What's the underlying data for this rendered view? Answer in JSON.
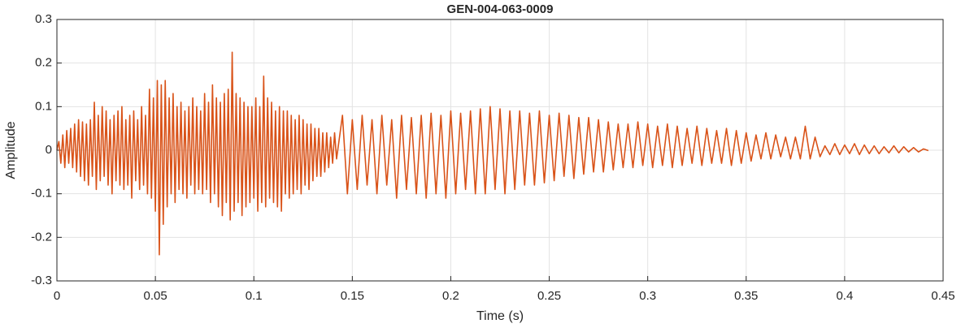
{
  "chart_data": {
    "type": "line",
    "title": "GEN-004-063-0009",
    "x_label": "Time (s)",
    "y_label": "Amplitude",
    "color": "#d95319",
    "grid": true,
    "xlim": [
      0,
      0.45
    ],
    "xticks": [
      0,
      0.05,
      0.1,
      0.15,
      0.2,
      0.25,
      0.3,
      0.35,
      0.4,
      0.45
    ],
    "ylim": [
      -0.3,
      0.3
    ],
    "yticks": [
      -0.3,
      -0.2,
      -0.1,
      0,
      0.1,
      0.2,
      0.3
    ],
    "x": [
      0,
      0.001,
      0.002,
      0.003,
      0.004,
      0.005,
      0.006,
      0.007,
      0.008,
      0.009,
      0.01,
      0.011,
      0.012,
      0.013,
      0.014,
      0.015,
      0.016,
      0.017,
      0.018,
      0.019,
      0.02,
      0.021,
      0.022,
      0.023,
      0.024,
      0.025,
      0.026,
      0.027,
      0.028,
      0.029,
      0.03,
      0.031,
      0.032,
      0.033,
      0.034,
      0.035,
      0.036,
      0.037,
      0.038,
      0.039,
      0.04,
      0.041,
      0.042,
      0.043,
      0.044,
      0.045,
      0.046,
      0.047,
      0.048,
      0.049,
      0.05,
      0.051,
      0.052,
      0.053,
      0.054,
      0.055,
      0.056,
      0.057,
      0.058,
      0.059,
      0.06,
      0.061,
      0.062,
      0.063,
      0.064,
      0.065,
      0.066,
      0.067,
      0.068,
      0.069,
      0.07,
      0.071,
      0.072,
      0.073,
      0.074,
      0.075,
      0.076,
      0.077,
      0.078,
      0.079,
      0.08,
      0.081,
      0.082,
      0.083,
      0.084,
      0.085,
      0.086,
      0.087,
      0.088,
      0.089,
      0.09,
      0.091,
      0.092,
      0.093,
      0.094,
      0.095,
      0.096,
      0.097,
      0.098,
      0.099,
      0.1,
      0.101,
      0.102,
      0.103,
      0.104,
      0.105,
      0.106,
      0.107,
      0.108,
      0.109,
      0.11,
      0.111,
      0.112,
      0.113,
      0.114,
      0.115,
      0.116,
      0.117,
      0.118,
      0.119,
      0.12,
      0.121,
      0.122,
      0.123,
      0.124,
      0.125,
      0.126,
      0.127,
      0.128,
      0.129,
      0.13,
      0.131,
      0.132,
      0.133,
      0.134,
      0.135,
      0.136,
      0.137,
      0.138,
      0.139,
      0.14,
      0.141,
      0.142,
      0.145,
      0.1475,
      0.15,
      0.1525,
      0.155,
      0.1575,
      0.16,
      0.1625,
      0.165,
      0.1675,
      0.17,
      0.1725,
      0.175,
      0.1775,
      0.18,
      0.1825,
      0.185,
      0.1875,
      0.19,
      0.1925,
      0.195,
      0.1975,
      0.2,
      0.2025,
      0.205,
      0.2075,
      0.21,
      0.2125,
      0.215,
      0.2175,
      0.22,
      0.2225,
      0.225,
      0.2275,
      0.23,
      0.2325,
      0.235,
      0.2375,
      0.24,
      0.2425,
      0.245,
      0.2475,
      0.25,
      0.2525,
      0.255,
      0.2575,
      0.26,
      0.2625,
      0.265,
      0.2675,
      0.27,
      0.2725,
      0.275,
      0.2775,
      0.28,
      0.2825,
      0.285,
      0.2875,
      0.29,
      0.2925,
      0.295,
      0.2975,
      0.3,
      0.3025,
      0.305,
      0.3075,
      0.31,
      0.3125,
      0.315,
      0.3175,
      0.32,
      0.3225,
      0.325,
      0.3275,
      0.33,
      0.3325,
      0.335,
      0.3375,
      0.34,
      0.3425,
      0.345,
      0.3475,
      0.35,
      0.3525,
      0.355,
      0.3575,
      0.36,
      0.3625,
      0.365,
      0.3675,
      0.37,
      0.3725,
      0.375,
      0.3775,
      0.38,
      0.3825,
      0.385,
      0.3875,
      0.39,
      0.3925,
      0.395,
      0.3975,
      0.4,
      0.4025,
      0.405,
      0.4075,
      0.41,
      0.4125,
      0.415,
      0.4175,
      0.42,
      0.4225,
      0.425,
      0.4275,
      0.43,
      0.4325,
      0.435,
      0.4375,
      0.44,
      0.4425
    ],
    "values": [
      0,
      0.02,
      -0.03,
      0.035,
      -0.04,
      0.045,
      -0.03,
      0.05,
      -0.04,
      0.06,
      -0.05,
      0.07,
      -0.06,
      0.065,
      -0.07,
      0.06,
      -0.08,
      0.07,
      -0.06,
      0.11,
      -0.09,
      0.08,
      -0.07,
      0.1,
      -0.06,
      0.09,
      -0.08,
      0.07,
      -0.1,
      0.08,
      -0.07,
      0.09,
      -0.08,
      0.1,
      -0.09,
      0.07,
      -0.08,
      0.08,
      -0.11,
      0.09,
      -0.07,
      0.07,
      -0.09,
      0.1,
      -0.08,
      0.08,
      -0.1,
      0.14,
      -0.11,
      0.12,
      -0.14,
      0.16,
      -0.24,
      0.15,
      -0.17,
      0.16,
      -0.13,
      0.12,
      -0.1,
      0.13,
      -0.12,
      0.1,
      -0.09,
      0.11,
      -0.1,
      0.09,
      -0.11,
      0.1,
      -0.08,
      0.12,
      -0.1,
      0.1,
      -0.09,
      0.09,
      -0.1,
      0.13,
      -0.09,
      0.11,
      -0.12,
      0.15,
      -0.1,
      0.12,
      -0.13,
      0.11,
      -0.15,
      0.13,
      -0.12,
      0.14,
      -0.16,
      0.225,
      -0.14,
      0.13,
      -0.12,
      0.12,
      -0.15,
      0.11,
      -0.13,
      0.1,
      -0.12,
      0.1,
      -0.11,
      0.12,
      -0.14,
      0.1,
      -0.12,
      0.17,
      -0.13,
      0.12,
      -0.11,
      0.11,
      -0.12,
      0.09,
      -0.13,
      0.1,
      -0.14,
      0.09,
      -0.1,
      0.09,
      -0.11,
      0.08,
      -0.1,
      0.07,
      -0.09,
      0.08,
      -0.1,
      0.07,
      -0.08,
      0.06,
      -0.09,
      0.06,
      -0.07,
      0.05,
      -0.06,
      0.05,
      -0.06,
      0.04,
      -0.05,
      0.04,
      -0.04,
      0.03,
      -0.03,
      0.04,
      -0.02,
      0.08,
      -0.1,
      0.07,
      -0.09,
      0.08,
      -0.08,
      0.07,
      -0.1,
      0.08,
      -0.08,
      0.07,
      -0.11,
      0.08,
      -0.09,
      0.075,
      -0.1,
      0.08,
      -0.11,
      0.085,
      -0.1,
      0.08,
      -0.11,
      0.09,
      -0.1,
      0.085,
      -0.09,
      0.09,
      -0.1,
      0.095,
      -0.1,
      0.1,
      -0.09,
      0.095,
      -0.1,
      0.09,
      -0.09,
      0.09,
      -0.08,
      0.085,
      -0.08,
      0.09,
      -0.075,
      0.08,
      -0.07,
      0.085,
      -0.06,
      0.08,
      -0.065,
      0.075,
      -0.055,
      0.075,
      -0.05,
      0.07,
      -0.05,
      0.065,
      -0.045,
      0.06,
      -0.04,
      0.06,
      -0.04,
      0.065,
      -0.035,
      0.06,
      -0.04,
      0.055,
      -0.035,
      0.06,
      -0.04,
      0.055,
      -0.035,
      0.05,
      -0.03,
      0.055,
      -0.035,
      0.05,
      -0.03,
      0.045,
      -0.03,
      0.05,
      -0.035,
      0.045,
      -0.03,
      0.04,
      -0.025,
      0.035,
      -0.02,
      0.04,
      -0.02,
      0.035,
      -0.015,
      0.03,
      -0.02,
      0.03,
      -0.02,
      0.055,
      -0.02,
      0.03,
      -0.015,
      0.01,
      -0.01,
      0.015,
      -0.01,
      0.012,
      -0.008,
      0.015,
      -0.01,
      0.012,
      -0.008,
      0.01,
      -0.008,
      0.008,
      -0.006,
      0.01,
      -0.006,
      0.008,
      -0.004,
      0.006,
      -0.004,
      0.003,
      -0.001
    ]
  }
}
